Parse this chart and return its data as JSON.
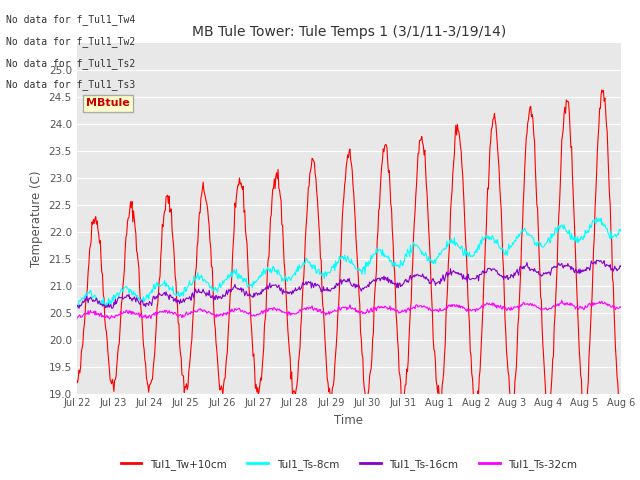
{
  "title": "MB Tule Tower: Tule Temps 1 (3/1/11-3/19/14)",
  "xlabel": "Time",
  "ylabel": "Temperature (C)",
  "ylim": [
    19.0,
    25.5
  ],
  "yticks": [
    19.0,
    19.5,
    20.0,
    20.5,
    21.0,
    21.5,
    22.0,
    22.5,
    23.0,
    23.5,
    24.0,
    24.5,
    25.0
  ],
  "bg_color": "#e8e8e8",
  "colors": {
    "Tw": "#ff0000",
    "Ts8": "#00ffff",
    "Ts16": "#8800cc",
    "Ts32": "#ff00ff"
  },
  "xtick_labels": [
    "Jul 22",
    "Jul 23",
    "Jul 24",
    "Jul 25",
    "Jul 26",
    "Jul 27",
    "Jul 28",
    "Jul 29",
    "Jul 30",
    "Jul 31",
    "Aug 1",
    "Aug 2",
    "Aug 3",
    "Aug 4",
    "Aug 5",
    "Aug 6"
  ],
  "legend_labels": [
    "Tul1_Tw+10cm",
    "Tul1_Ts-8cm",
    "Tul1_Ts-16cm",
    "Tul1_Ts-32cm"
  ],
  "no_data_texts": [
    "No data for f_Tul1_Tw4",
    "No data for f_Tul1_Tw2",
    "No data for f_Tul1_Ts2",
    "No data for f_Tul1_Ts3"
  ],
  "tooltip_text": "MBtule",
  "n_days": 15,
  "pts_per_day": 48
}
